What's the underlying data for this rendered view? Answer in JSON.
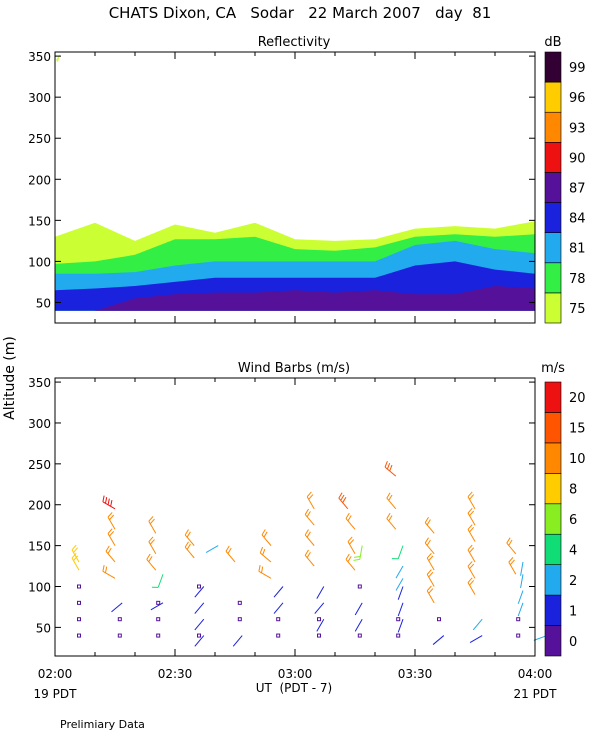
{
  "title": "CHATS Dixon, CA   Sodar   22 March 2007   day  81",
  "y_axis_label": "Altitude (m)",
  "x_axis": {
    "ticks": [
      "02:00",
      "02:30",
      "03:00",
      "03:30",
      "04:00"
    ],
    "label": "UT  (PDT - 7)",
    "left_sub": "19 PDT",
    "right_sub": "21 PDT"
  },
  "footer": "Prelimiary Data",
  "chart_data": [
    {
      "type": "area",
      "title": "Reflectivity",
      "unit": "dB",
      "x": [
        "02:00",
        "02:10",
        "02:20",
        "02:30",
        "02:40",
        "02:50",
        "03:00",
        "03:10",
        "03:20",
        "03:30",
        "03:40",
        "03:50",
        "04:00"
      ],
      "x_hours": [
        2.0,
        2.1667,
        2.3333,
        2.5,
        2.6667,
        2.8333,
        3.0,
        3.1667,
        3.3333,
        3.5,
        3.6667,
        3.8333,
        4.0
      ],
      "ylim": [
        25,
        355
      ],
      "yticks": [
        50,
        100,
        150,
        200,
        250,
        300,
        350
      ],
      "base_altitude": 40,
      "bands": [
        {
          "db": 75,
          "color": "#ccff33",
          "top": [
            130,
            147,
            125,
            145,
            135,
            147,
            127,
            125,
            127,
            140,
            143,
            140,
            149
          ]
        },
        {
          "db": 78,
          "color": "#33ee44",
          "top": [
            97,
            100,
            108,
            127,
            127,
            130,
            115,
            113,
            117,
            130,
            133,
            130,
            133
          ]
        },
        {
          "db": 81,
          "color": "#22aaee",
          "top": [
            85,
            85,
            87,
            95,
            100,
            100,
            100,
            100,
            100,
            120,
            125,
            115,
            110
          ]
        },
        {
          "db": 84,
          "color": "#1a22dd",
          "top": [
            65,
            67,
            70,
            75,
            80,
            80,
            80,
            80,
            80,
            95,
            100,
            90,
            85
          ]
        },
        {
          "db": 87,
          "color": "#551199",
          "top": [
            40,
            40,
            55,
            60,
            62,
            62,
            65,
            62,
            65,
            60,
            60,
            70,
            67
          ]
        }
      ],
      "colorbar": [
        {
          "label": "75",
          "color": "#ccff33"
        },
        {
          "label": "78",
          "color": "#33ee44"
        },
        {
          "label": "81",
          "color": "#22aaee"
        },
        {
          "label": "84",
          "color": "#1a22dd"
        },
        {
          "label": "87",
          "color": "#551199"
        },
        {
          "label": "90",
          "color": "#ee1111"
        },
        {
          "label": "93",
          "color": "#ff8800"
        },
        {
          "label": "96",
          "color": "#ffcc00"
        },
        {
          "label": "99",
          "color": "#330033"
        }
      ]
    },
    {
      "type": "scatter",
      "title": "Wind Barbs (m/s)",
      "unit": "m/s",
      "xlim": [
        2.0,
        4.0
      ],
      "ylim": [
        15,
        355
      ],
      "yticks": [
        50,
        100,
        150,
        200,
        250,
        300,
        350
      ],
      "colorbar": [
        {
          "label": "0",
          "color": "#551199"
        },
        {
          "label": "1",
          "color": "#1a22dd"
        },
        {
          "label": "2",
          "color": "#22aaee"
        },
        {
          "label": "4",
          "color": "#11dd77"
        },
        {
          "label": "6",
          "color": "#88ee22"
        },
        {
          "label": "8",
          "color": "#ffcc00"
        },
        {
          "label": "10",
          "color": "#ff8800"
        },
        {
          "label": "15",
          "color": "#ff5500"
        },
        {
          "label": "20",
          "color": "#ee1111"
        }
      ],
      "barbs": [
        {
          "t": 2.1,
          "alt": 40,
          "speed": 0
        },
        {
          "t": 2.1,
          "alt": 60,
          "speed": 0
        },
        {
          "t": 2.1,
          "alt": 80,
          "speed": 0
        },
        {
          "t": 2.1,
          "alt": 100,
          "speed": 0
        },
        {
          "t": 2.27,
          "alt": 40,
          "speed": 0
        },
        {
          "t": 2.27,
          "alt": 60,
          "speed": 0
        },
        {
          "t": 2.43,
          "alt": 40,
          "speed": 0
        },
        {
          "t": 2.43,
          "alt": 60,
          "speed": 0
        },
        {
          "t": 2.43,
          "alt": 80,
          "speed": 0
        },
        {
          "t": 2.6,
          "alt": 40,
          "speed": 0
        },
        {
          "t": 2.6,
          "alt": 100,
          "speed": 0
        },
        {
          "t": 2.77,
          "alt": 60,
          "speed": 0
        },
        {
          "t": 2.77,
          "alt": 80,
          "speed": 0
        },
        {
          "t": 2.93,
          "alt": 40,
          "speed": 0
        },
        {
          "t": 2.93,
          "alt": 60,
          "speed": 0
        },
        {
          "t": 3.1,
          "alt": 40,
          "speed": 0
        },
        {
          "t": 3.1,
          "alt": 60,
          "speed": 0
        },
        {
          "t": 3.27,
          "alt": 40,
          "speed": 0
        },
        {
          "t": 3.27,
          "alt": 100,
          "speed": 0
        },
        {
          "t": 3.43,
          "alt": 40,
          "speed": 0
        },
        {
          "t": 3.43,
          "alt": 60,
          "speed": 0
        },
        {
          "t": 3.6,
          "alt": 60,
          "speed": 0
        },
        {
          "t": 3.93,
          "alt": 40,
          "speed": 0
        },
        {
          "t": 3.93,
          "alt": 60,
          "speed": 0
        },
        {
          "t": 2.28,
          "alt": 80,
          "speed": 1,
          "dir": 230
        },
        {
          "t": 2.45,
          "alt": 80,
          "speed": 1,
          "dir": 240
        },
        {
          "t": 2.62,
          "alt": 40,
          "speed": 1,
          "dir": 220
        },
        {
          "t": 2.62,
          "alt": 60,
          "speed": 1,
          "dir": 220
        },
        {
          "t": 2.62,
          "alt": 80,
          "speed": 1,
          "dir": 220
        },
        {
          "t": 2.62,
          "alt": 100,
          "speed": 1,
          "dir": 220
        },
        {
          "t": 2.78,
          "alt": 40,
          "speed": 1,
          "dir": 220
        },
        {
          "t": 2.95,
          "alt": 80,
          "speed": 1,
          "dir": 220
        },
        {
          "t": 2.95,
          "alt": 100,
          "speed": 1,
          "dir": 220
        },
        {
          "t": 3.12,
          "alt": 60,
          "speed": 1,
          "dir": 210
        },
        {
          "t": 3.12,
          "alt": 80,
          "speed": 1,
          "dir": 220
        },
        {
          "t": 3.12,
          "alt": 100,
          "speed": 1,
          "dir": 210
        },
        {
          "t": 3.28,
          "alt": 60,
          "speed": 1,
          "dir": 210
        },
        {
          "t": 3.28,
          "alt": 80,
          "speed": 1,
          "dir": 210
        },
        {
          "t": 3.45,
          "alt": 60,
          "speed": 1,
          "dir": 200
        },
        {
          "t": 3.45,
          "alt": 80,
          "speed": 1,
          "dir": 200
        },
        {
          "t": 3.45,
          "alt": 100,
          "speed": 1,
          "dir": 200
        },
        {
          "t": 3.62,
          "alt": 40,
          "speed": 1,
          "dir": 230
        },
        {
          "t": 3.78,
          "alt": 40,
          "speed": 1,
          "dir": 240
        },
        {
          "t": 2.68,
          "alt": 150,
          "speed": 2,
          "dir": 240
        },
        {
          "t": 3.45,
          "alt": 110,
          "speed": 2,
          "dir": 210
        },
        {
          "t": 3.45,
          "alt": 125,
          "speed": 2,
          "dir": 210
        },
        {
          "t": 3.78,
          "alt": 60,
          "speed": 2,
          "dir": 220
        },
        {
          "t": 3.95,
          "alt": 80,
          "speed": 2,
          "dir": 200
        },
        {
          "t": 3.95,
          "alt": 95,
          "speed": 2,
          "dir": 200
        },
        {
          "t": 3.95,
          "alt": 115,
          "speed": 2,
          "dir": 190
        },
        {
          "t": 3.95,
          "alt": 130,
          "speed": 2,
          "dir": 190
        },
        {
          "t": 4.05,
          "alt": 40,
          "speed": 2,
          "dir": 250
        },
        {
          "t": 2.45,
          "alt": 115,
          "speed": 4,
          "dir": 200
        },
        {
          "t": 3.45,
          "alt": 150,
          "speed": 4,
          "dir": 200
        },
        {
          "t": 3.28,
          "alt": 150,
          "speed": 6,
          "dir": 190
        },
        {
          "t": 2.1,
          "alt": 130,
          "speed": 8,
          "dir": 330
        },
        {
          "t": 2.1,
          "alt": 120,
          "speed": 8,
          "dir": 330
        },
        {
          "t": 2.25,
          "alt": 110,
          "speed": 10,
          "dir": 300
        },
        {
          "t": 2.25,
          "alt": 130,
          "speed": 10,
          "dir": 320
        },
        {
          "t": 2.25,
          "alt": 150,
          "speed": 10,
          "dir": 330
        },
        {
          "t": 2.25,
          "alt": 170,
          "speed": 10,
          "dir": 330
        },
        {
          "t": 2.42,
          "alt": 120,
          "speed": 10,
          "dir": 320
        },
        {
          "t": 2.42,
          "alt": 140,
          "speed": 10,
          "dir": 330
        },
        {
          "t": 2.42,
          "alt": 165,
          "speed": 10,
          "dir": 330
        },
        {
          "t": 2.58,
          "alt": 135,
          "speed": 10,
          "dir": 320
        },
        {
          "t": 2.58,
          "alt": 150,
          "speed": 10,
          "dir": 320
        },
        {
          "t": 2.75,
          "alt": 130,
          "speed": 10,
          "dir": 320
        },
        {
          "t": 2.9,
          "alt": 110,
          "speed": 10,
          "dir": 300
        },
        {
          "t": 2.9,
          "alt": 130,
          "speed": 10,
          "dir": 310
        },
        {
          "t": 2.9,
          "alt": 150,
          "speed": 10,
          "dir": 320
        },
        {
          "t": 3.08,
          "alt": 125,
          "speed": 10,
          "dir": 320
        },
        {
          "t": 3.08,
          "alt": 150,
          "speed": 10,
          "dir": 320
        },
        {
          "t": 3.08,
          "alt": 175,
          "speed": 10,
          "dir": 320
        },
        {
          "t": 3.08,
          "alt": 195,
          "speed": 10,
          "dir": 330
        },
        {
          "t": 3.25,
          "alt": 120,
          "speed": 10,
          "dir": 320
        },
        {
          "t": 3.25,
          "alt": 140,
          "speed": 10,
          "dir": 330
        },
        {
          "t": 3.25,
          "alt": 170,
          "speed": 10,
          "dir": 320
        },
        {
          "t": 3.42,
          "alt": 170,
          "speed": 10,
          "dir": 320
        },
        {
          "t": 3.42,
          "alt": 195,
          "speed": 10,
          "dir": 320
        },
        {
          "t": 3.58,
          "alt": 80,
          "speed": 10,
          "dir": 330
        },
        {
          "t": 3.58,
          "alt": 100,
          "speed": 10,
          "dir": 330
        },
        {
          "t": 3.58,
          "alt": 120,
          "speed": 10,
          "dir": 330
        },
        {
          "t": 3.58,
          "alt": 140,
          "speed": 10,
          "dir": 320
        },
        {
          "t": 3.58,
          "alt": 165,
          "speed": 10,
          "dir": 320
        },
        {
          "t": 3.75,
          "alt": 90,
          "speed": 10,
          "dir": 330
        },
        {
          "t": 3.75,
          "alt": 110,
          "speed": 10,
          "dir": 330
        },
        {
          "t": 3.75,
          "alt": 130,
          "speed": 10,
          "dir": 330
        },
        {
          "t": 3.75,
          "alt": 155,
          "speed": 10,
          "dir": 330
        },
        {
          "t": 3.75,
          "alt": 175,
          "speed": 10,
          "dir": 330
        },
        {
          "t": 3.75,
          "alt": 195,
          "speed": 10,
          "dir": 330
        },
        {
          "t": 3.92,
          "alt": 140,
          "speed": 10,
          "dir": 320
        },
        {
          "t": 3.92,
          "alt": 115,
          "speed": 10,
          "dir": 330
        },
        {
          "t": 3.42,
          "alt": 235,
          "speed": 15,
          "dir": 310
        },
        {
          "t": 3.22,
          "alt": 195,
          "speed": 15,
          "dir": 320
        },
        {
          "t": 2.25,
          "alt": 195,
          "speed": 20,
          "dir": 300
        }
      ]
    }
  ]
}
